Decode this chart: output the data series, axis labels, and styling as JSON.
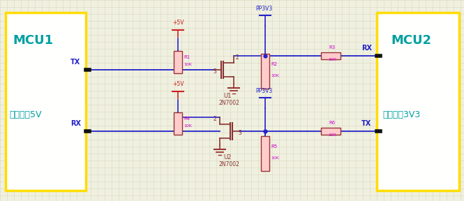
{
  "bg_color": "#f0f0e0",
  "grid_color": "#d8d8c0",
  "box_color": "#ffdd00",
  "box_fill": "#fffffe",
  "mcu_text_color": "#00a0a0",
  "wire_color": "#2222cc",
  "res_color": "#993333",
  "res_fill": "#ffcccc",
  "label_blue": "#2222cc",
  "label_magenta": "#cc00cc",
  "label_red": "#cc2222",
  "gnd_color": "#993333",
  "mcu1_label": "MCU1",
  "mcu2_label": "MCU2",
  "mcu1_sub": "工作电压5V",
  "mcu2_sub": "工作电压3V3",
  "tx_label": "TX",
  "rx_label": "RX",
  "pp3v3": "PP3V3",
  "vcc5": "+5V",
  "u1_label": "U1",
  "u2_label": "U2",
  "mosfet_label": "2N7002",
  "r1": "R1",
  "r1v": "10K",
  "r2": "R2",
  "r2v": "10K",
  "r3": "R3",
  "r3v": "10R",
  "r4": "R4",
  "r4v": "10K",
  "r5": "R5",
  "r5v": "10K",
  "r6": "R6",
  "r6v": "10R"
}
